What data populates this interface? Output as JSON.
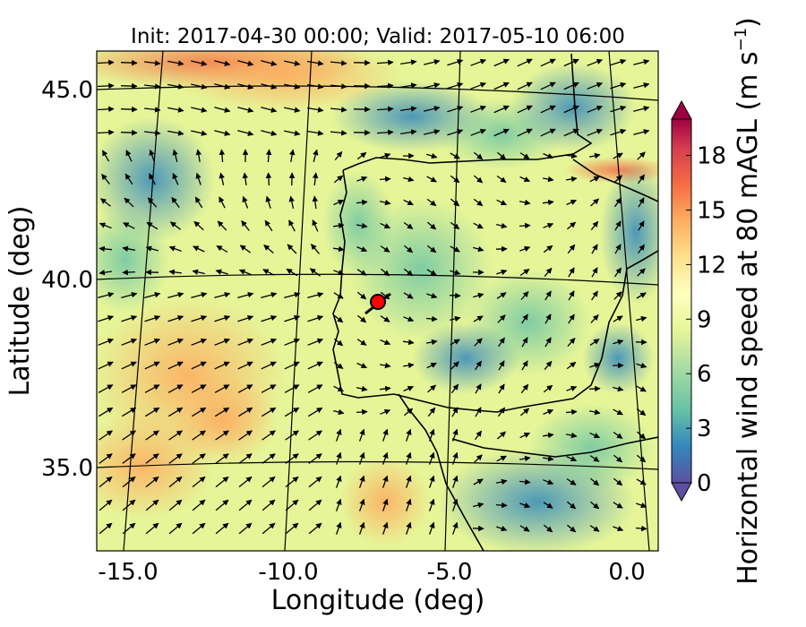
{
  "map": {
    "title": "Init: 2017-04-30 00:00; Valid: 2017-05-10 06:00",
    "xlabel": "Longitude (deg)",
    "ylabel": "Latitude (deg)",
    "x_range": [
      -15.8,
      0.2
    ],
    "y_range": [
      32.6,
      46.0
    ],
    "x_ticks": [
      "-15.0",
      "-10.0",
      "-5.0",
      "0.0"
    ],
    "y_ticks": [
      "35.0",
      "40.0",
      "45.0"
    ],
    "field": "horizontal wind speed at 80 m AGL",
    "projection_grid": "curved lat/lon graticule",
    "marker": {
      "lon": -7.7,
      "lat": 39.35,
      "color": "#ff0000",
      "label": ""
    }
  },
  "colorbar": {
    "label": "Horizontal wind speed at 80 mAGL (m s",
    "label_superscript": "−1",
    "label_suffix": ")",
    "ticks": [
      "0",
      "3",
      "6",
      "9",
      "12",
      "15",
      "18"
    ],
    "range": [
      0,
      20
    ],
    "extend": "both",
    "colormap": "Spectral_r",
    "colors": [
      "#5e4fa2",
      "#3288bd",
      "#66c2a5",
      "#abdda4",
      "#e6f598",
      "#ffffbf",
      "#fee08b",
      "#fdae61",
      "#f46d43",
      "#d53e4f",
      "#9e0142"
    ]
  }
}
